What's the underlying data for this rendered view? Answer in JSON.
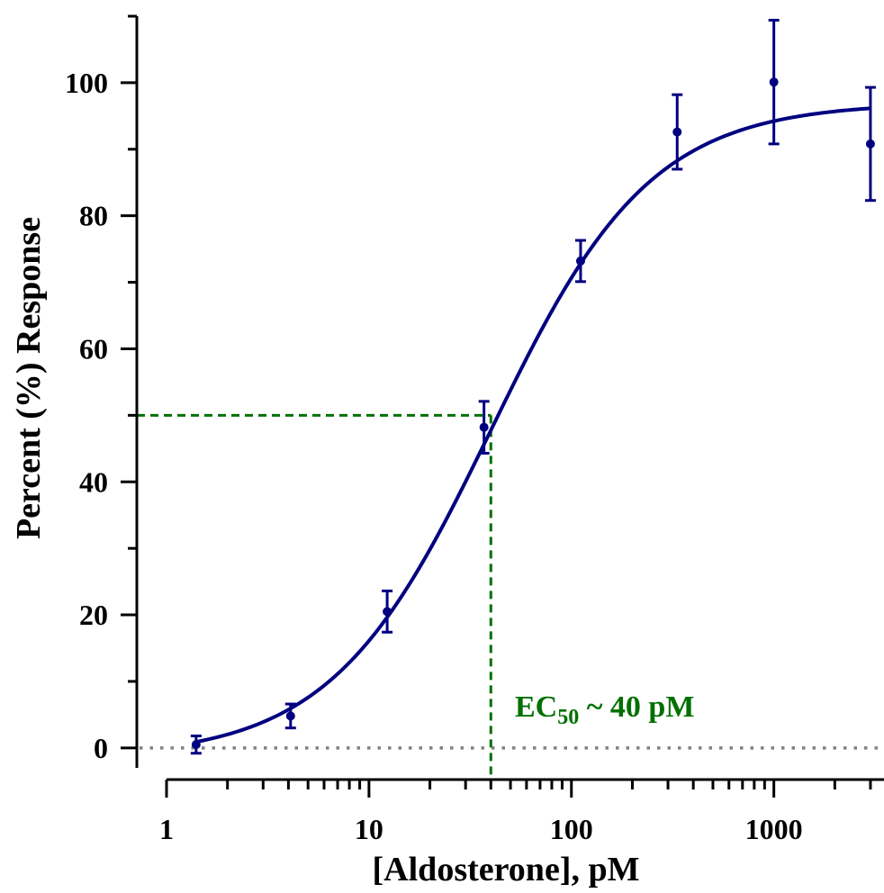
{
  "chart_data": {
    "type": "scatter",
    "title": "",
    "xlabel": "[Aldosterone], pM",
    "ylabel": "Percent (%) Response",
    "x_scale": "log",
    "xlim": [
      1,
      3500
    ],
    "ylim": [
      -3,
      110
    ],
    "x_ticks": [
      {
        "value": 1,
        "label": "1"
      },
      {
        "value": 10,
        "label": "10"
      },
      {
        "value": 100,
        "label": "100"
      },
      {
        "value": 1000,
        "label": "1000"
      }
    ],
    "y_ticks": [
      {
        "value": 0,
        "label": "0"
      },
      {
        "value": 20,
        "label": "20"
      },
      {
        "value": 40,
        "label": "40"
      },
      {
        "value": 60,
        "label": "60"
      },
      {
        "value": 80,
        "label": "80"
      },
      {
        "value": 100,
        "label": "100"
      }
    ],
    "grid": false,
    "series": [
      {
        "type": "scatter",
        "color": "#000080",
        "points": [
          {
            "x": 1.4,
            "y": 0.5,
            "err": 1.3
          },
          {
            "x": 4.1,
            "y": 4.8,
            "err": 1.8
          },
          {
            "x": 12.3,
            "y": 20.5,
            "err": 3.1
          },
          {
            "x": 37,
            "y": 48.2,
            "err": 3.9
          },
          {
            "x": 111,
            "y": 73.2,
            "err": 3.1
          },
          {
            "x": 333,
            "y": 92.6,
            "err": 5.6
          },
          {
            "x": 1000,
            "y": 100.1,
            "err": 9.3
          },
          {
            "x": 3000,
            "y": 90.8,
            "err": 8.5
          }
        ]
      },
      {
        "type": "line",
        "fit": "four-parameter logistic",
        "color": "#000080",
        "bottom": -1.5,
        "top": 97,
        "ec50": 40,
        "hill": 1.1,
        "x_range": [
          1.4,
          3000
        ]
      }
    ],
    "reference_lines": [
      {
        "orientation": "horizontal",
        "y": 0,
        "style": "dotted",
        "color": "#808080"
      },
      {
        "orientation": "horizontal",
        "y": 50,
        "x_to": 40,
        "style": "dashed",
        "color": "#007000"
      },
      {
        "orientation": "vertical",
        "x": 40,
        "y_to": 50,
        "style": "dashed",
        "color": "#007000"
      }
    ],
    "annotations": [
      {
        "id": "ec50",
        "text_main": "EC",
        "text_sub": "50",
        "text_tail": " ~ 40 pM",
        "color": "#007000"
      }
    ]
  }
}
